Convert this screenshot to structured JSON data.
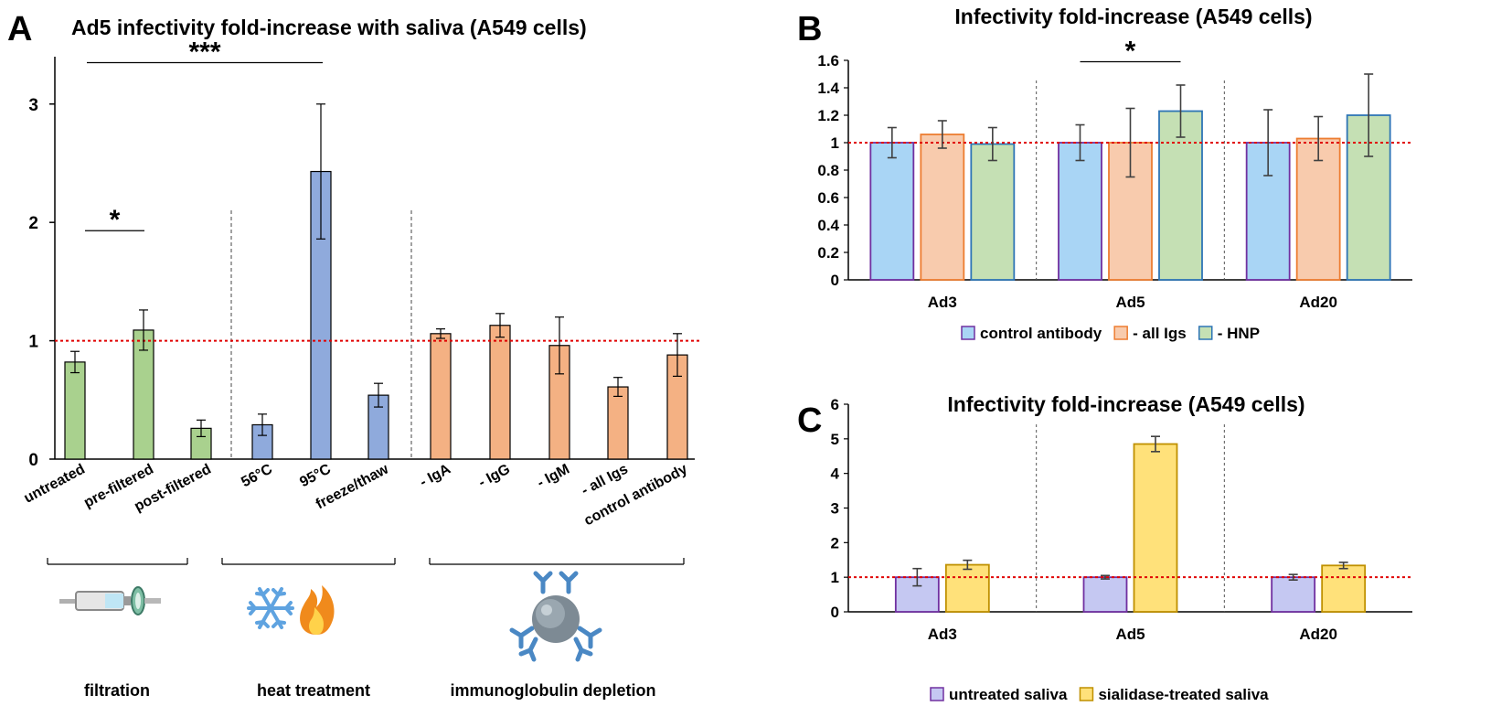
{
  "chart_data": [
    {
      "panel": "A",
      "type": "bar",
      "title": "Ad5 infectivity fold-increase with saliva (A549 cells)",
      "ylim": [
        0,
        3.4
      ],
      "yticks": [
        "0",
        "1",
        "2",
        "3"
      ],
      "reference_line": 1,
      "categories": [
        "untreated",
        "pre-filtered",
        "post-filtered",
        "56°C",
        "95°C",
        "freeze/thaw",
        "- IgA",
        "- IgG",
        "- IgM",
        "- all Igs",
        "control antibody"
      ],
      "values": [
        0.82,
        1.09,
        0.26,
        0.29,
        2.43,
        0.54,
        1.06,
        1.13,
        0.96,
        0.61,
        0.88
      ],
      "errors": [
        0.09,
        0.17,
        0.07,
        0.09,
        0.57,
        0.1,
        0.04,
        0.1,
        0.24,
        0.08,
        0.18
      ],
      "colors": [
        "#a9d18e",
        "#a9d18e",
        "#a9d18e",
        "#8faadc",
        "#8faadc",
        "#8faadc",
        "#f4b183",
        "#f4b183",
        "#f4b183",
        "#f4b183",
        "#f4b183"
      ],
      "significance": [
        {
          "label": "*",
          "from": 0,
          "to": 1,
          "y": 1.93
        },
        {
          "label": "***",
          "from": 0,
          "to": 4,
          "y": 3.35
        }
      ],
      "groups": [
        {
          "label": "filtration",
          "from": 0,
          "to": 2,
          "icon": "syringe-filter-icon"
        },
        {
          "label": "heat treatment",
          "from": 3,
          "to": 5,
          "icon": "snowflake-flame-icon"
        },
        {
          "label": "immunoglobulin depletion",
          "from": 6,
          "to": 10,
          "icon": "antibody-bead-icon"
        }
      ]
    },
    {
      "panel": "B",
      "type": "bar",
      "title": "Infectivity fold-increase (A549 cells)",
      "ylim": [
        0,
        1.6
      ],
      "yticks": [
        "0",
        "0.2",
        "0.4",
        "0.6",
        "0.8",
        "1",
        "1.2",
        "1.4",
        "1.6"
      ],
      "reference_line": 1,
      "categories": [
        "Ad3",
        "Ad5",
        "Ad20"
      ],
      "series": [
        {
          "name": "control antibody",
          "values": [
            1.0,
            1.0,
            1.0
          ],
          "errors": [
            0.11,
            0.13,
            0.24
          ],
          "fill": "#a9d5f5",
          "stroke": "#7030a0"
        },
        {
          "name": "- all Igs",
          "values": [
            1.06,
            1.0,
            1.03
          ],
          "errors": [
            0.1,
            0.25,
            0.16
          ],
          "fill": "#f8cbad",
          "stroke": "#ed7d31"
        },
        {
          "name": "- HNP",
          "values": [
            0.99,
            1.23,
            1.2
          ],
          "errors": [
            0.12,
            0.19,
            0.3
          ],
          "fill": "#c5e0b4",
          "stroke": "#2e75b6"
        }
      ],
      "significance": [
        {
          "label": "*",
          "category": 1,
          "y": 1.59
        }
      ]
    },
    {
      "panel": "C",
      "type": "bar",
      "title": "Infectivity fold-increase (A549 cells)",
      "ylim": [
        0,
        6
      ],
      "yticks": [
        "0",
        "1",
        "2",
        "3",
        "4",
        "5",
        "6"
      ],
      "reference_line": 1,
      "categories": [
        "Ad3",
        "Ad5",
        "Ad20"
      ],
      "series": [
        {
          "name": "untreated saliva",
          "values": [
            1.0,
            1.0,
            1.0
          ],
          "errors": [
            0.25,
            0.05,
            0.08
          ],
          "fill": "#c5c8f2",
          "stroke": "#7030a0"
        },
        {
          "name": "sialidase-treated saliva",
          "values": [
            1.36,
            4.85,
            1.34
          ],
          "errors": [
            0.13,
            0.22,
            0.09
          ],
          "fill": "#ffe17a",
          "stroke": "#bf9000"
        }
      ]
    }
  ]
}
